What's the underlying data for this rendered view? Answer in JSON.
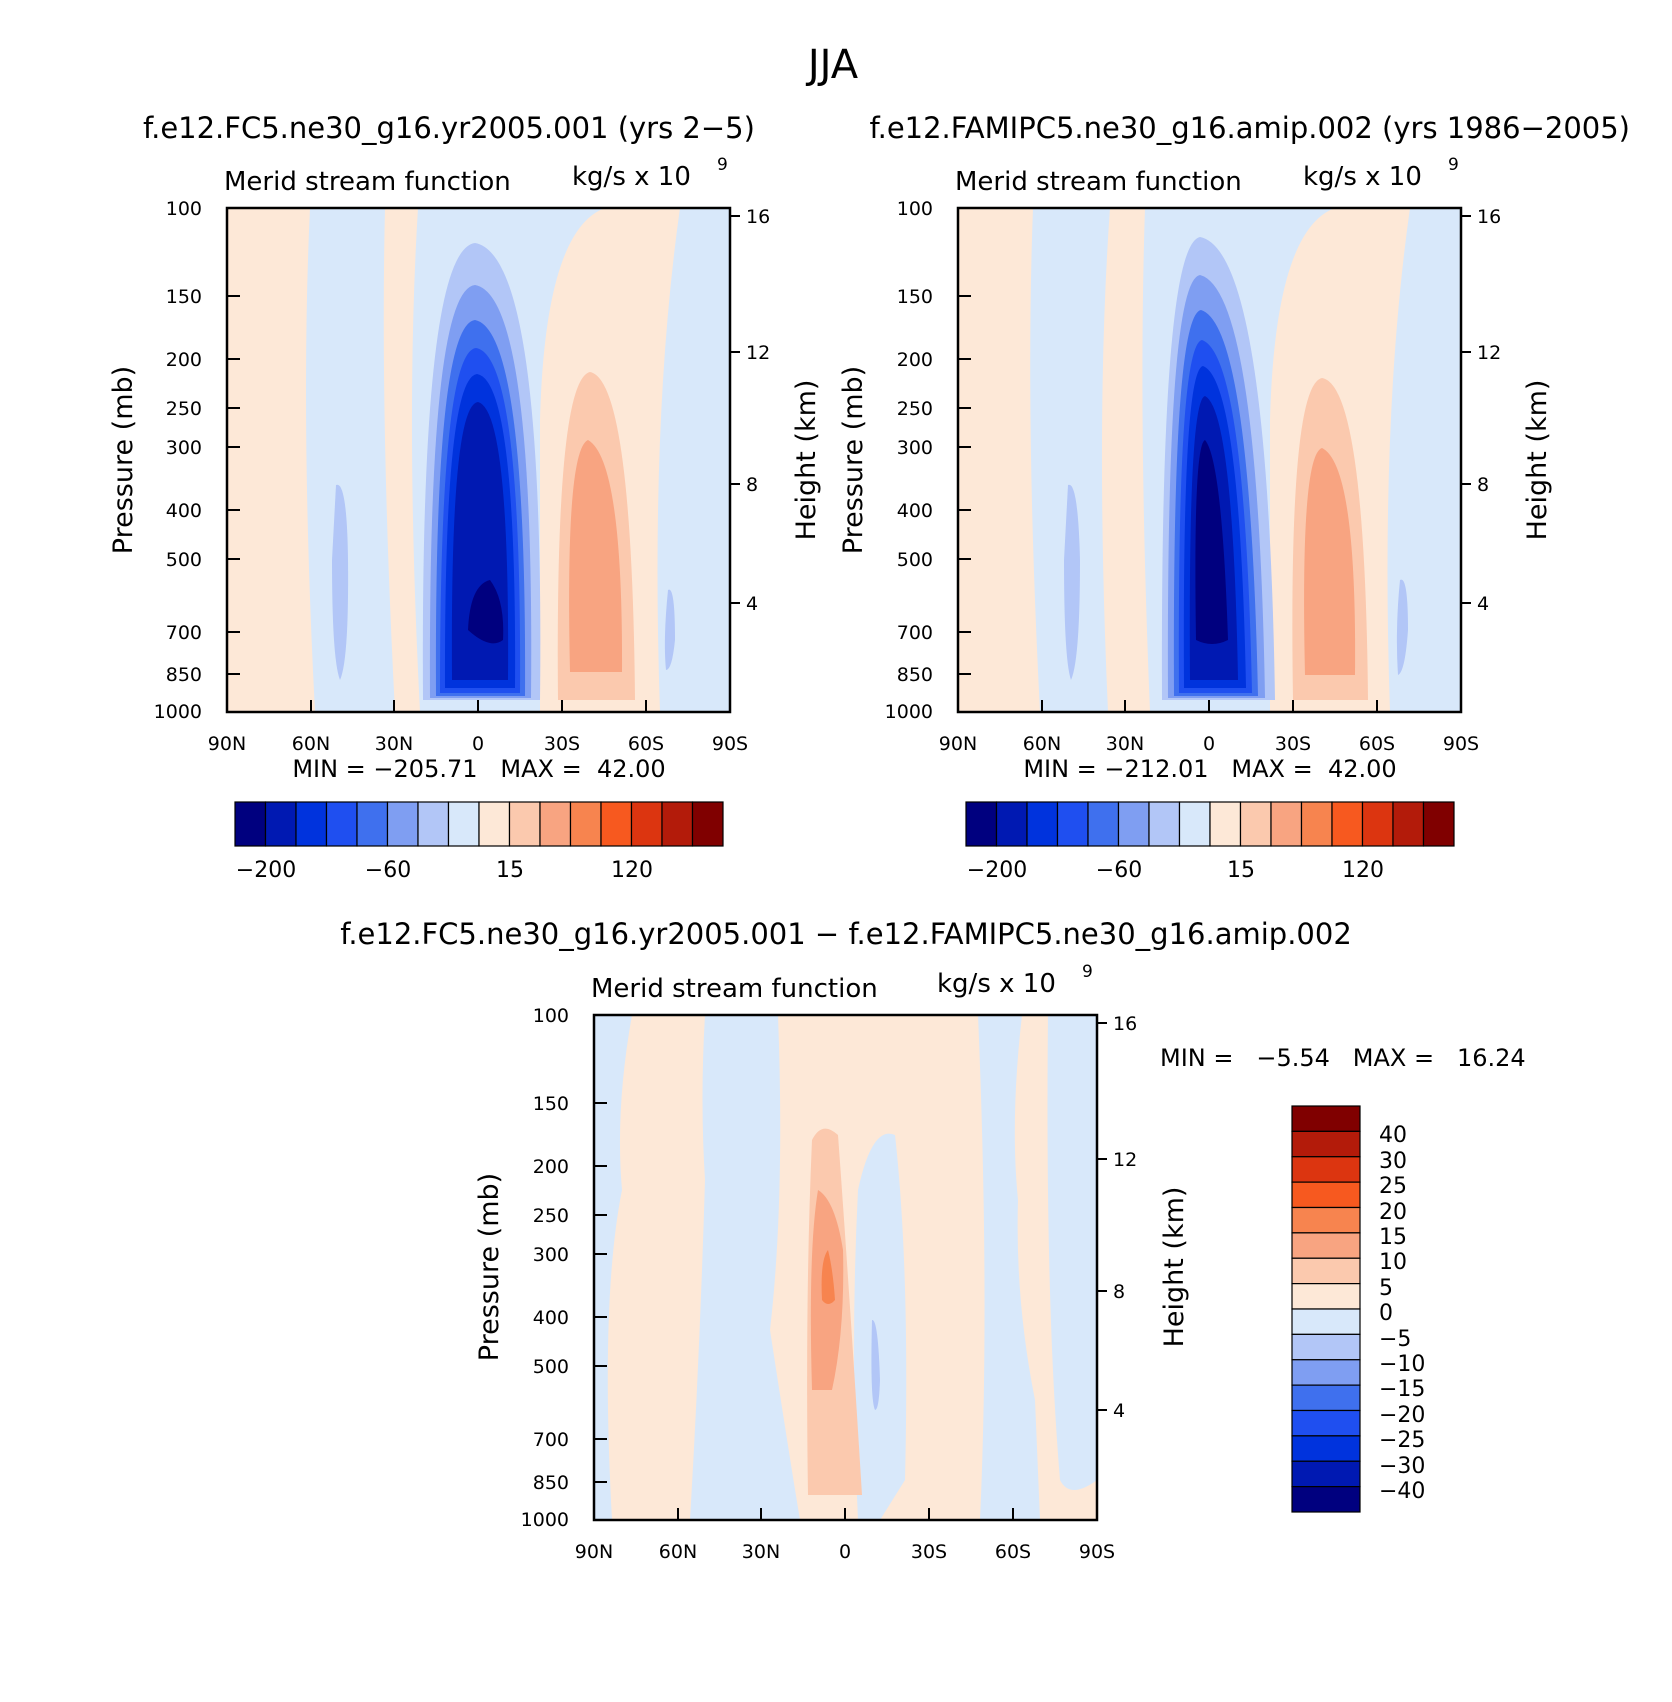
{
  "figure_title": "JJA",
  "colors": {
    "left_palette": [
      "#00007f",
      "#0019b2",
      "#0033dd",
      "#1f4ff0",
      "#3f70ee",
      "#7f9ef2",
      "#b2c6f7",
      "#d8e8fa",
      "#fde8d7",
      "#fbc9ae",
      "#f8a481",
      "#f7844f",
      "#f7591f",
      "#dc3510",
      "#b31b0a",
      "#800000"
    ],
    "diff_palette": [
      "#00007f",
      "#0019b2",
      "#0033dd",
      "#1f4ff0",
      "#3f70ee",
      "#7f9ef2",
      "#b2c6f7",
      "#d8e8fa",
      "#fde8d7",
      "#fbc9ae",
      "#f8a481",
      "#f7844f",
      "#f7591f",
      "#dc3510",
      "#b31b0a",
      "#800000"
    ]
  },
  "chart_data": [
    {
      "type": "heatmap",
      "title": "f.e12.FC5.ne30_g16.yr2005.001 (yrs 2−5)",
      "field_label": "Merid stream function",
      "units_label": "kg/s x 10",
      "units_exp": "9",
      "ylabel": "Pressure (mb)",
      "ylabel_right": "Height (km)",
      "xticks": [
        "90N",
        "60N",
        "30N",
        "0",
        "30S",
        "60S",
        "90S"
      ],
      "yticks": [
        "100",
        "150",
        "200",
        "250",
        "300",
        "400",
        "500",
        "700",
        "850",
        "1000"
      ],
      "yticks_right": [
        "16",
        "12",
        "8",
        "4"
      ],
      "xlim": [
        90,
        -90
      ],
      "ylim": [
        1000,
        100
      ],
      "y_scale": "log",
      "min_max": "MIN = −205.71   MAX =  42.00",
      "colorbar_labels": [
        "−200",
        "−60",
        "15",
        "120"
      ],
      "features": [
        {
          "lat_range": [
            10,
            -22
          ],
          "p_range": [
            1000,
            140
          ],
          "level": "min",
          "value": -205.71
        },
        {
          "lat_range": [
            -25,
            -50
          ],
          "p_range": [
            950,
            230
          ],
          "level": "max",
          "value": 42.0
        }
      ]
    },
    {
      "type": "heatmap",
      "title": "f.e12.FAMIPC5.ne30_g16.amip.002 (yrs 1986−2005)",
      "field_label": "Merid stream function",
      "units_label": "kg/s x 10",
      "units_exp": "9",
      "ylabel": "Pressure (mb)",
      "ylabel_right": "Height (km)",
      "xticks": [
        "90N",
        "60N",
        "30N",
        "0",
        "30S",
        "60S",
        "90S"
      ],
      "yticks": [
        "100",
        "150",
        "200",
        "250",
        "300",
        "400",
        "500",
        "700",
        "850",
        "1000"
      ],
      "yticks_right": [
        "16",
        "12",
        "8",
        "4"
      ],
      "xlim": [
        90,
        -90
      ],
      "ylim": [
        1000,
        100
      ],
      "y_scale": "log",
      "min_max": "MIN = −212.01   MAX =  42.00",
      "colorbar_labels": [
        "−200",
        "−60",
        "15",
        "120"
      ],
      "features": [
        {
          "lat_range": [
            10,
            -22
          ],
          "p_range": [
            1000,
            140
          ],
          "level": "min",
          "value": -212.01
        },
        {
          "lat_range": [
            -25,
            -50
          ],
          "p_range": [
            950,
            230
          ],
          "level": "max",
          "value": 42.0
        }
      ]
    },
    {
      "type": "heatmap",
      "title": "f.e12.FC5.ne30_g16.yr2005.001 − f.e12.FAMIPC5.ne30_g16.amip.002",
      "field_label": "Merid stream function",
      "units_label": "kg/s x 10",
      "units_exp": "9",
      "ylabel": "Pressure (mb)",
      "ylabel_right": "Height (km)",
      "xticks": [
        "90N",
        "60N",
        "30N",
        "0",
        "30S",
        "60S",
        "90S"
      ],
      "yticks": [
        "100",
        "150",
        "200",
        "250",
        "300",
        "400",
        "500",
        "700",
        "850",
        "1000"
      ],
      "yticks_right": [
        "16",
        "12",
        "8",
        "4"
      ],
      "xlim": [
        90,
        -90
      ],
      "ylim": [
        1000,
        100
      ],
      "y_scale": "log",
      "min_max": "MIN =   −5.54   MAX =   16.24",
      "colorbar_labels": [
        "40",
        "30",
        "25",
        "20",
        "15",
        "10",
        "5",
        "0",
        "−5",
        "−10",
        "−15",
        "−20",
        "−25",
        "−30",
        "−40"
      ],
      "features": [
        {
          "lat_range": [
            12,
            -3
          ],
          "p_range": [
            900,
            160
          ],
          "level": "max",
          "value": 16.24
        },
        {
          "lat_range": [
            -12,
            -14
          ],
          "p_range": [
            550,
            400
          ],
          "level": "min",
          "value": -5.54
        }
      ]
    }
  ]
}
